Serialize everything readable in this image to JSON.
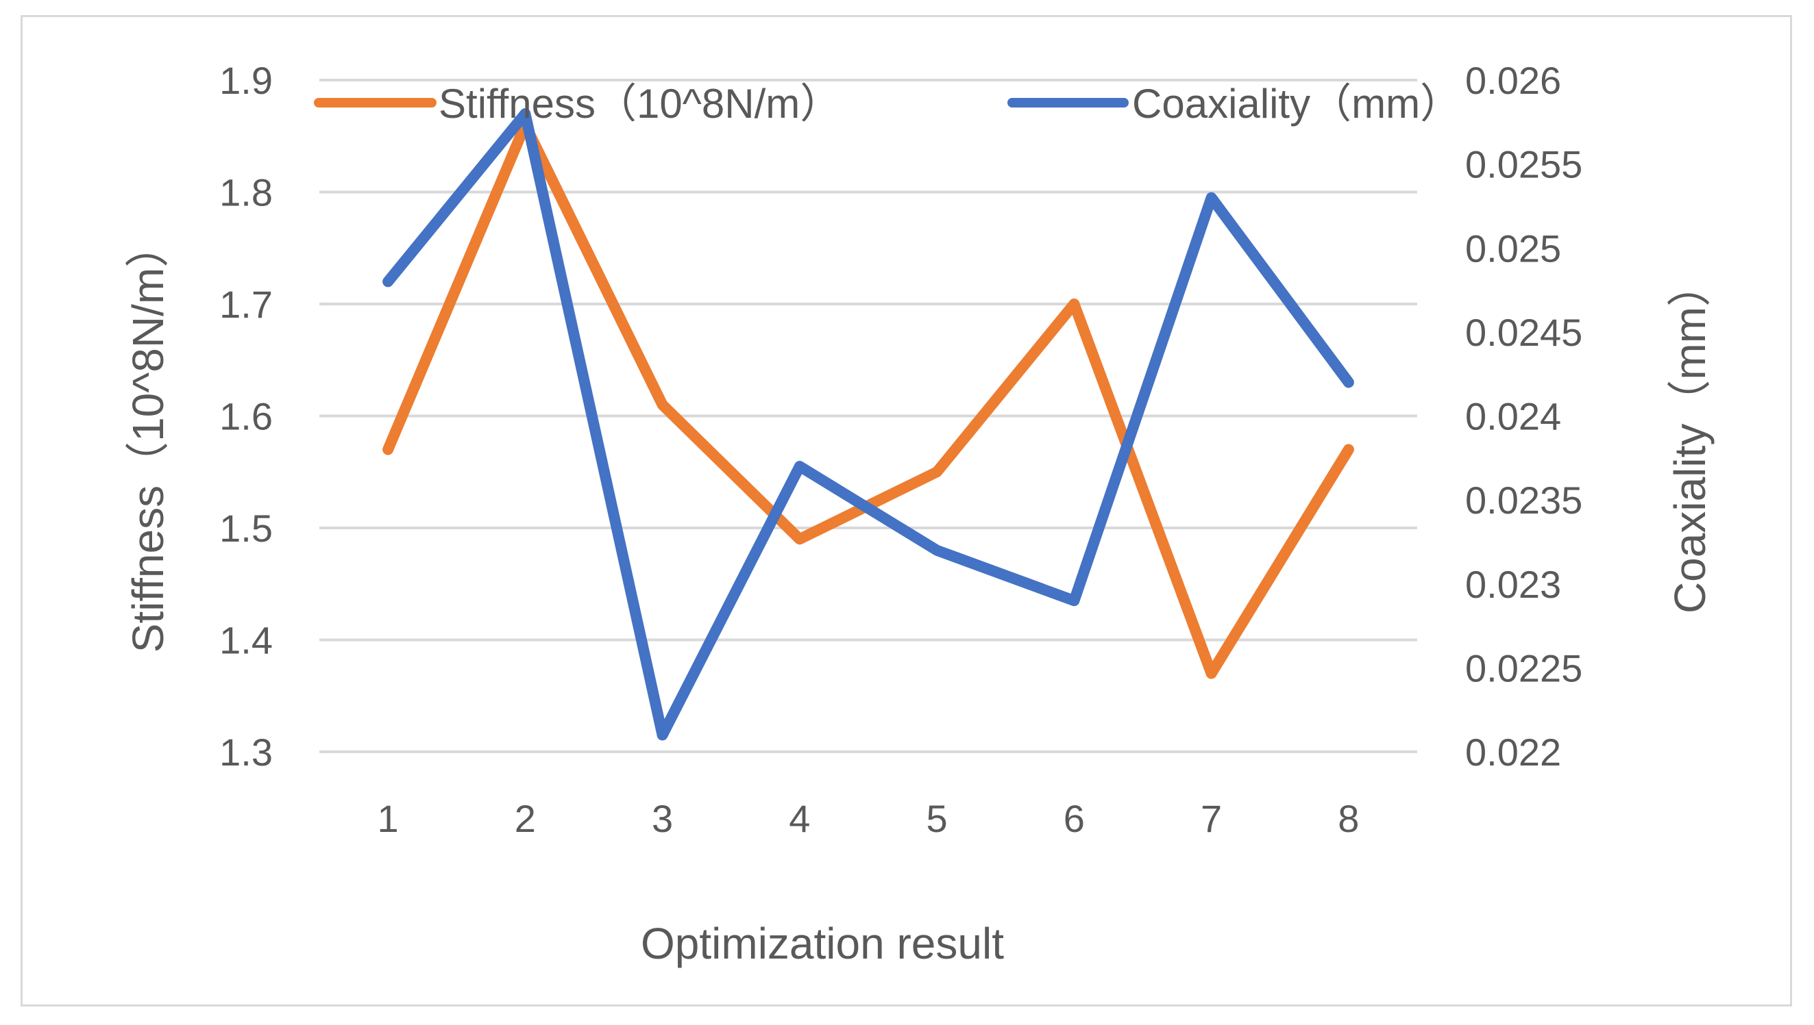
{
  "chart_data": {
    "type": "line",
    "title": "",
    "xlabel": "Optimization result",
    "ylabel_left": "Stiffness（10^8N/m）",
    "ylabel_right": "Coaxiality（mm）",
    "categories": [
      "1",
      "2",
      "3",
      "4",
      "5",
      "6",
      "7",
      "8"
    ],
    "y_left": {
      "range": [
        1.3,
        1.9
      ],
      "ticks": [
        "1.3",
        "1.4",
        "1.5",
        "1.6",
        "1.7",
        "1.8",
        "1.9"
      ]
    },
    "y_right": {
      "range": [
        0.022,
        0.026
      ],
      "ticks": [
        "0.022",
        "0.0225",
        "0.023",
        "0.0235",
        "0.024",
        "0.0245",
        "0.025",
        "0.0255",
        "0.026"
      ]
    },
    "grid": true,
    "legend_position": "top",
    "series": [
      {
        "name": "Stiffness（10^8N/m）",
        "axis": "left",
        "color": "#ED7D31",
        "values": [
          1.57,
          1.86,
          1.61,
          1.49,
          1.55,
          1.7,
          1.37,
          1.57
        ]
      },
      {
        "name": "Coaxiality（mm）",
        "axis": "right",
        "color": "#4472C4",
        "values": [
          0.0248,
          0.0258,
          0.0221,
          0.0237,
          0.0232,
          0.0229,
          0.0253,
          0.0242
        ]
      }
    ]
  }
}
